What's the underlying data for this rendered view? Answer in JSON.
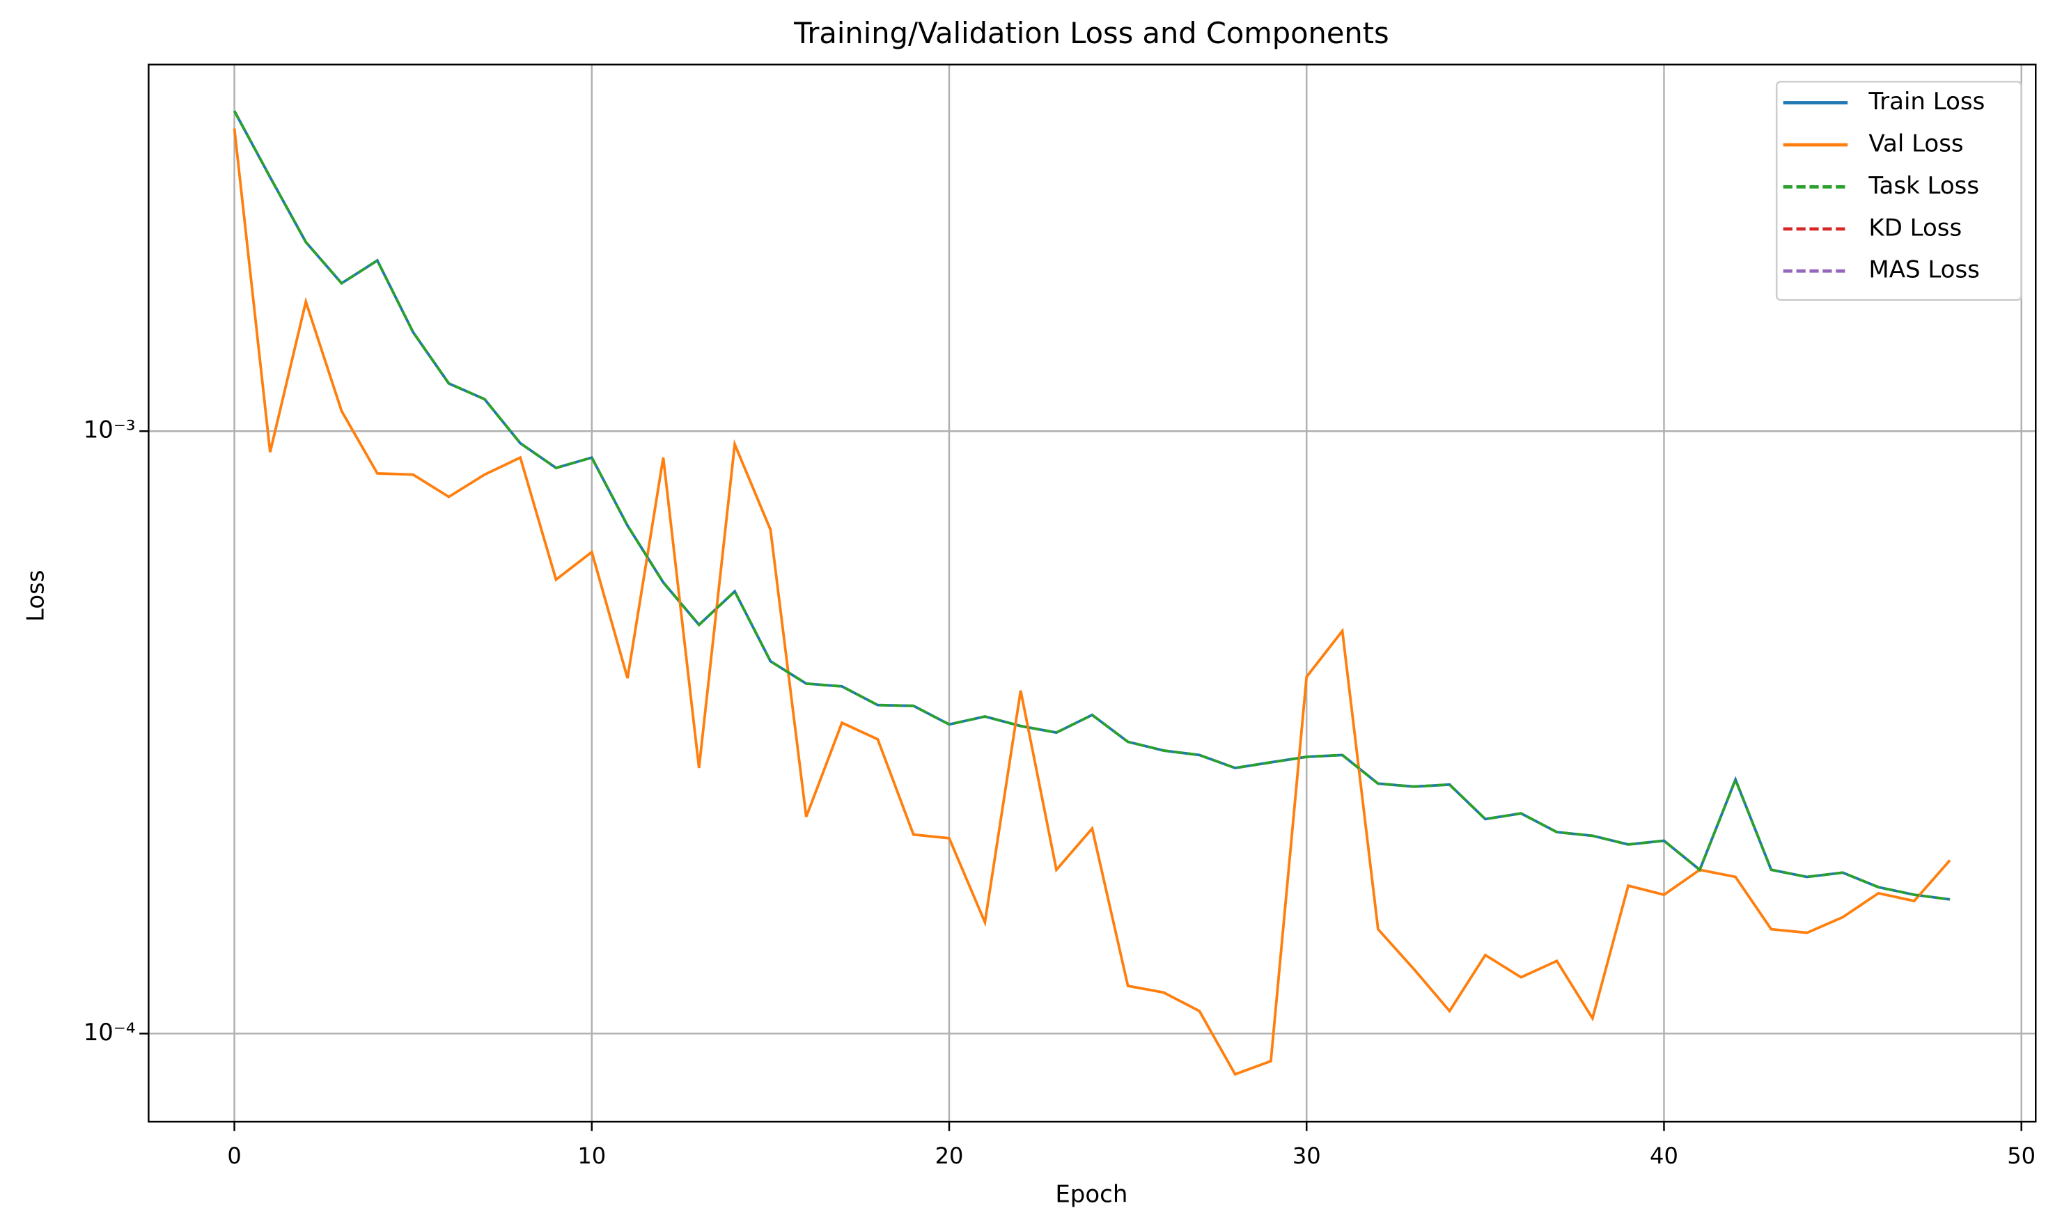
{
  "chart_data": {
    "type": "line",
    "title": "Training/Validation Loss and Components",
    "x_label": "Epoch",
    "y_label": "Loss",
    "x": [
      0,
      1,
      2,
      3,
      4,
      5,
      6,
      7,
      8,
      9,
      10,
      11,
      12,
      13,
      14,
      15,
      16,
      17,
      18,
      19,
      20,
      21,
      22,
      23,
      24,
      25,
      26,
      27,
      28,
      29,
      30,
      31,
      32,
      33,
      34,
      35,
      36,
      37,
      38,
      39,
      40,
      41,
      42,
      43,
      44,
      45,
      46,
      47,
      48
    ],
    "series": [
      {
        "name": "Train Loss",
        "color": "#1f77b4",
        "linestyle": "solid",
        "values": [
          0.0034,
          0.00264,
          0.00206,
          0.00176,
          0.00192,
          0.00146,
          0.0012,
          0.00113,
          0.000955,
          0.000869,
          0.000904,
          0.000697,
          0.000561,
          0.000477,
          0.000542,
          0.000415,
          0.000381,
          0.000377,
          0.000351,
          0.00035,
          0.000326,
          0.000336,
          0.000324,
          0.000316,
          0.000338,
          0.000305,
          0.000295,
          0.00029,
          0.000276,
          0.000282,
          0.000288,
          0.00029,
          0.00026,
          0.000257,
          0.000259,
          0.000227,
          0.000232,
          0.000216,
          0.000213,
          0.000206,
          0.000209,
          0.000187,
          0.000264,
          0.000187,
          0.000182,
          0.000185,
          0.000175,
          0.00017,
          0.000167
        ]
      },
      {
        "name": "Val Loss",
        "color": "#ff7f0e",
        "linestyle": "solid",
        "values": [
          0.00318,
          0.000923,
          0.00164,
          0.00108,
          0.000851,
          0.000847,
          0.000778,
          0.000847,
          0.000904,
          0.000567,
          0.00063,
          0.000389,
          0.000904,
          0.000276,
          0.000951,
          0.000686,
          0.000229,
          0.000328,
          0.000308,
          0.000214,
          0.000211,
          0.000153,
          0.000371,
          0.000187,
          0.000219,
          0.00012,
          0.000117,
          0.000109,
          8.56e-05,
          9e-05,
          0.000391,
          0.000466,
          0.000149,
          0.000128,
          0.000109,
          0.000135,
          0.000124,
          0.000132,
          0.000106,
          0.000176,
          0.00017,
          0.000187,
          0.000182,
          0.000149,
          0.000147,
          0.000156,
          0.000171,
          0.000166,
          0.000194
        ]
      },
      {
        "name": "Task Loss",
        "color": "#2ca02c",
        "linestyle": "dashed",
        "values": [
          0.0034,
          0.00264,
          0.00206,
          0.00176,
          0.00192,
          0.00146,
          0.0012,
          0.00113,
          0.000955,
          0.000869,
          0.000904,
          0.000697,
          0.000561,
          0.000477,
          0.000542,
          0.000415,
          0.000381,
          0.000377,
          0.000351,
          0.00035,
          0.000326,
          0.000336,
          0.000324,
          0.000316,
          0.000338,
          0.000305,
          0.000295,
          0.00029,
          0.000276,
          0.000282,
          0.000288,
          0.00029,
          0.00026,
          0.000257,
          0.000259,
          0.000227,
          0.000232,
          0.000216,
          0.000213,
          0.000206,
          0.000209,
          0.000187,
          0.000264,
          0.000187,
          0.000182,
          0.000185,
          0.000175,
          0.00017,
          0.000167
        ]
      },
      {
        "name": "KD Loss",
        "color": "#d62728",
        "linestyle": "dashed",
        "values": [
          null,
          null,
          null,
          null,
          null,
          null,
          null,
          null,
          null,
          null,
          null,
          null,
          null,
          null,
          null,
          null,
          null,
          null,
          null,
          null,
          null,
          null,
          null,
          null,
          null,
          null,
          null,
          null,
          null,
          null,
          null,
          null,
          null,
          null,
          null,
          null,
          null,
          null,
          null,
          null,
          null,
          null,
          null,
          null,
          null,
          null,
          null,
          null,
          null
        ]
      },
      {
        "name": "MAS Loss",
        "color": "#9467bd",
        "linestyle": "dashed",
        "values": [
          null,
          null,
          null,
          null,
          null,
          null,
          null,
          null,
          null,
          null,
          null,
          null,
          null,
          null,
          null,
          null,
          null,
          null,
          null,
          null,
          null,
          null,
          null,
          null,
          null,
          null,
          null,
          null,
          null,
          null,
          null,
          null,
          null,
          null,
          null,
          null,
          null,
          null,
          null,
          null,
          null,
          null,
          null,
          null,
          null,
          null,
          null,
          null,
          null
        ]
      }
    ],
    "xlim": [
      -2.4,
      50.4
    ],
    "xticks": [
      0,
      10,
      20,
      30,
      40,
      50
    ],
    "ylim": [
      7.14e-05,
      0.00406
    ],
    "y_scale": "log",
    "yticks": [
      {
        "value": 0.0001,
        "label": "10⁻⁴"
      },
      {
        "value": 0.001,
        "label": "10⁻³"
      }
    ],
    "grid": true,
    "legend": "upper right"
  }
}
